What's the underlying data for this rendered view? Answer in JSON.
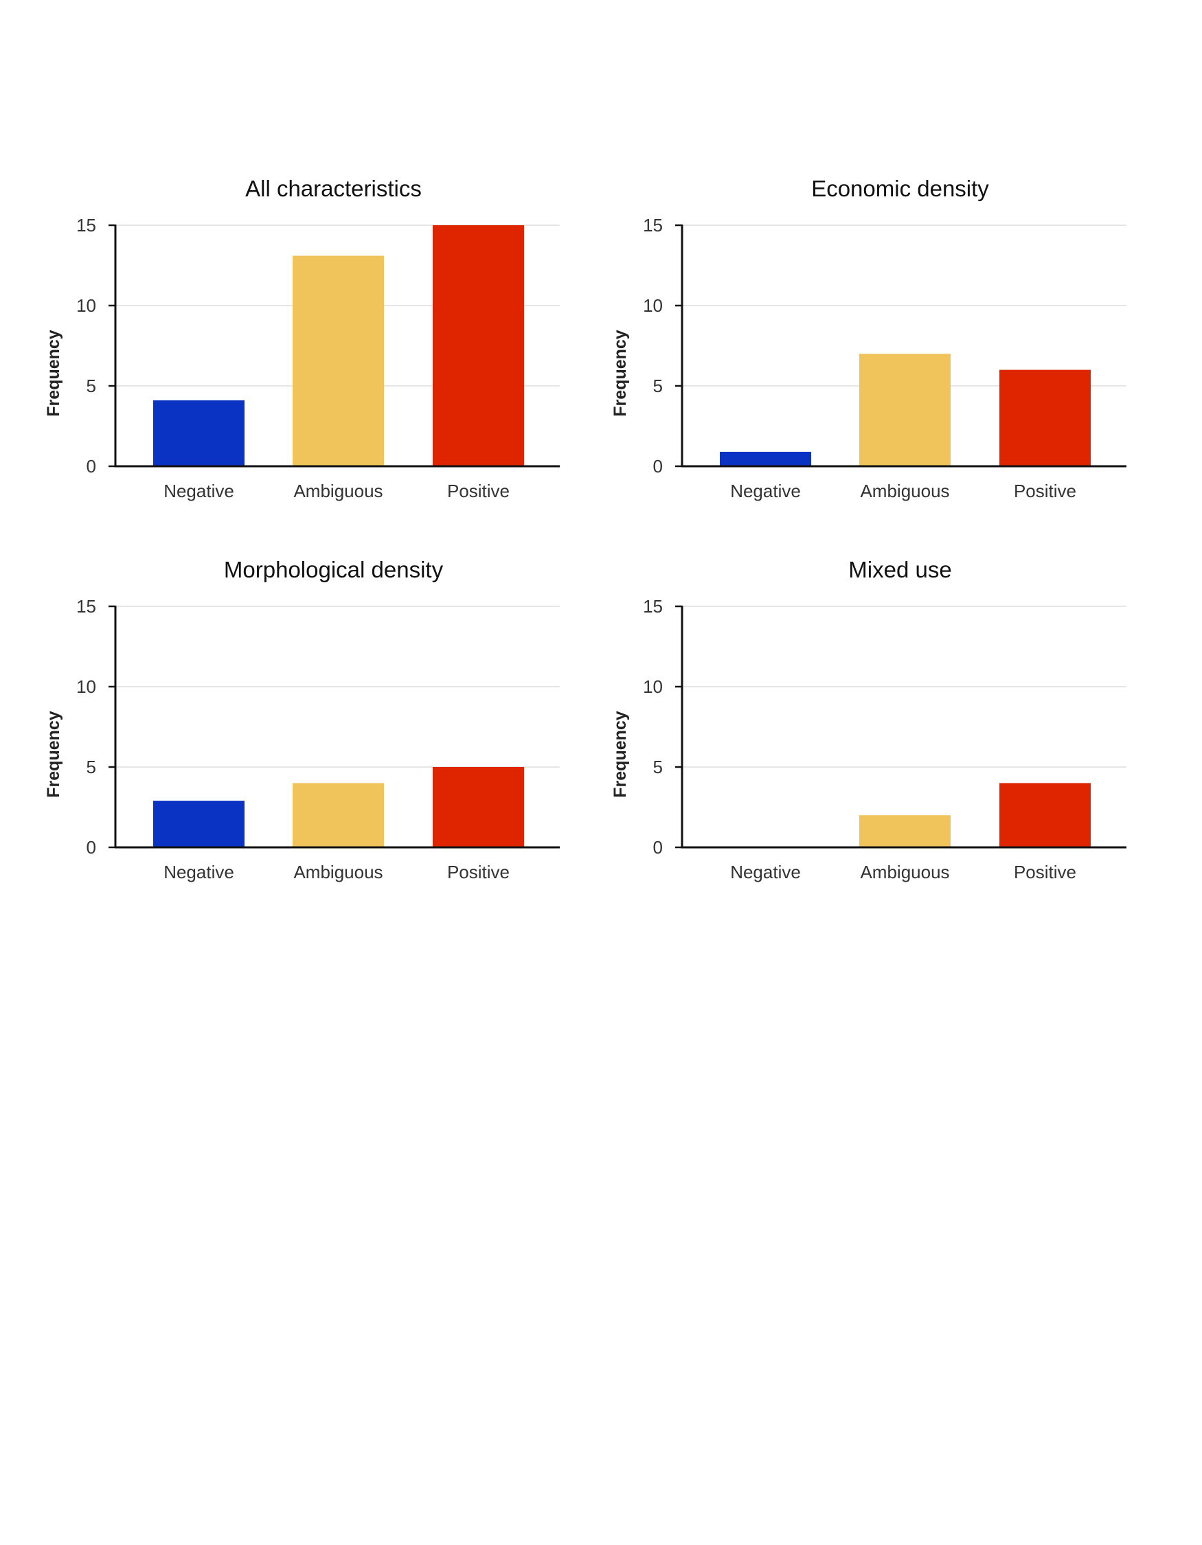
{
  "chart_data": [
    {
      "type": "bar",
      "title": "All characteristics",
      "ylabel": "Frequency",
      "categories": [
        "Negative",
        "Ambiguous",
        "Positive"
      ],
      "values": [
        4.1,
        13.1,
        15
      ],
      "ylim": [
        0,
        15
      ],
      "yticks": [
        0,
        5,
        10,
        15
      ],
      "grid": true
    },
    {
      "type": "bar",
      "title": "Economic density",
      "ylabel": "Frequency",
      "categories": [
        "Negative",
        "Ambiguous",
        "Positive"
      ],
      "values": [
        0.9,
        7,
        6
      ],
      "ylim": [
        0,
        15
      ],
      "yticks": [
        0,
        5,
        10,
        15
      ],
      "grid": true
    },
    {
      "type": "bar",
      "title": "Morphological density",
      "ylabel": "Frequency",
      "categories": [
        "Negative",
        "Ambiguous",
        "Positive"
      ],
      "values": [
        2.9,
        4,
        5
      ],
      "ylim": [
        0,
        15
      ],
      "yticks": [
        0,
        5,
        10,
        15
      ],
      "grid": true
    },
    {
      "type": "bar",
      "title": "Mixed use",
      "ylabel": "Frequency",
      "categories": [
        "Negative",
        "Ambiguous",
        "Positive"
      ],
      "values": [
        0,
        2,
        4
      ],
      "ylim": [
        0,
        15
      ],
      "yticks": [
        0,
        5,
        10,
        15
      ],
      "grid": true
    }
  ],
  "colors": {
    "Negative": "#0a32c3",
    "Ambiguous": "#f0c45a",
    "Positive": "#df2500",
    "axis": "#111111",
    "grid": "#dddddd"
  }
}
